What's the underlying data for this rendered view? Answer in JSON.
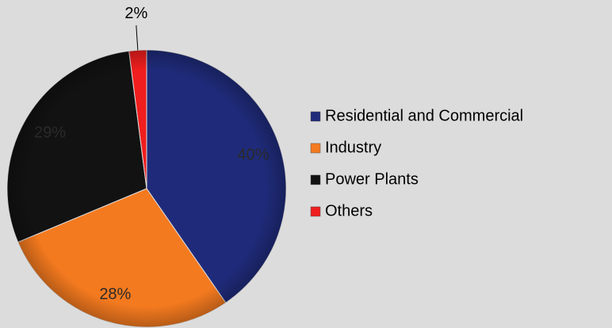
{
  "chart_data": {
    "type": "pie",
    "categories": [
      "Residential and Commercial",
      "Industry",
      "Power Plants",
      "Others"
    ],
    "values": [
      40,
      28,
      29,
      2
    ],
    "value_labels": [
      "40%",
      "28%",
      "29%",
      "2%"
    ],
    "colors": [
      "#1f2b7a",
      "#f47a1f",
      "#121212",
      "#f01e1e"
    ],
    "legend": "right"
  }
}
